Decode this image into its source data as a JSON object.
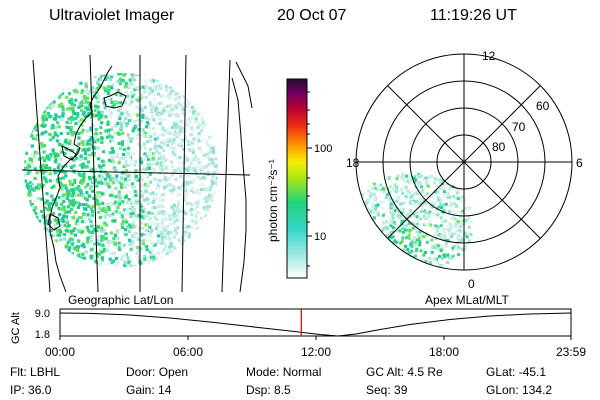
{
  "header": {
    "instrument": "Ultraviolet Imager",
    "date": "20 Oct 07",
    "time": "11:19:26 UT"
  },
  "colorbar": {
    "unit_label": "photon cm⁻²s⁻¹",
    "ticks": [
      "100",
      "10"
    ]
  },
  "geo_panel": {
    "label": "Geographic Lat/Lon"
  },
  "polar_panel": {
    "label": "Apex MLat/MLT",
    "mlt_labels": {
      "top": "12",
      "left": "18",
      "right": "6",
      "bottom": "0"
    },
    "lat_labels": [
      "60",
      "70",
      "80"
    ]
  },
  "altitude_plot": {
    "ylabel": "GC Alt",
    "y_ticks": [
      "9.0",
      "1.8"
    ],
    "x_ticks": [
      "00:00",
      "06:00",
      "12:00",
      "18:00",
      "23:59"
    ],
    "cursor_time": "11:19:26"
  },
  "status": {
    "row1": [
      {
        "key": "Flt:",
        "value": "LBHL"
      },
      {
        "key": "Door:",
        "value": "Open"
      },
      {
        "key": "Mode:",
        "value": "Normal"
      },
      {
        "key": "GC Alt:",
        "value": "4.5 Re"
      },
      {
        "key": "GLat:",
        "value": "-45.1"
      }
    ],
    "row2": [
      {
        "key": "IP:",
        "value": "36.0"
      },
      {
        "key": "Gain:",
        "value": "14"
      },
      {
        "key": "Dsp:",
        "value": "8.5"
      },
      {
        "key": "Seq:",
        "value": "39"
      },
      {
        "key": "GLon:",
        "value": "134.2"
      }
    ]
  },
  "colors": {
    "cursor": "#e00000",
    "speckle_main": "#2fd38f",
    "speckle_faint": "#b9e8d8"
  }
}
